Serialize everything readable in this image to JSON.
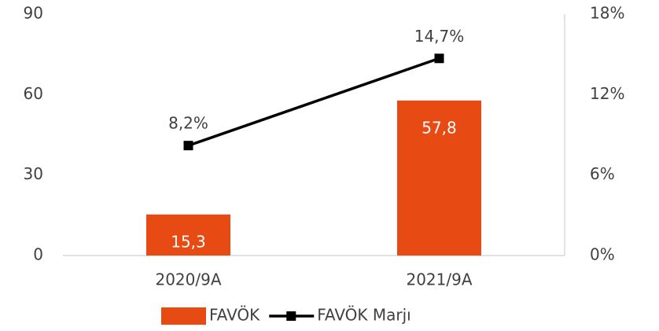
{
  "chart_data": {
    "type": "combo",
    "categories": [
      "2020/9A",
      "2021/9A"
    ],
    "series": [
      {
        "name": "FAVÖK",
        "type": "bar",
        "color": "#e84a13",
        "values": [
          15.3,
          57.8
        ],
        "value_labels": [
          "15,3",
          "57,8"
        ]
      },
      {
        "name": "FAVÖK Marjı",
        "type": "line",
        "axis": "y2",
        "color": "#000000",
        "values": [
          8.2,
          14.7
        ],
        "value_labels": [
          "8,2%",
          "14,7%"
        ]
      }
    ],
    "ylim": [
      0,
      90
    ],
    "yticks": [
      0,
      30,
      60,
      90
    ],
    "y2lim": [
      0,
      18
    ],
    "y2ticks": [
      {
        "value": 0,
        "label": "0%"
      },
      {
        "value": 6,
        "label": "6%"
      },
      {
        "value": 12,
        "label": "12%"
      },
      {
        "value": 18,
        "label": "18%"
      }
    ],
    "grid": false,
    "legend": "bottom"
  }
}
